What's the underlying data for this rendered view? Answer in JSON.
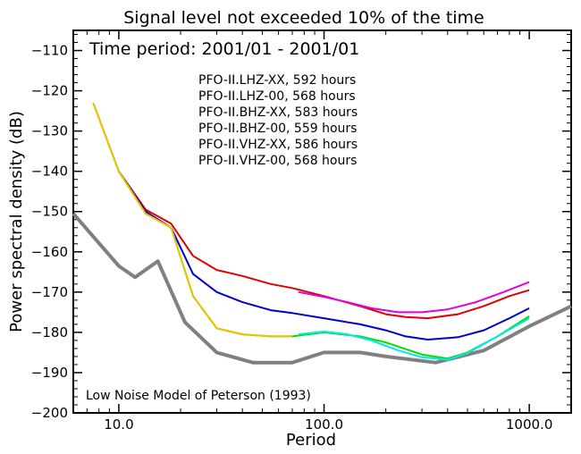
{
  "chart_data": {
    "type": "line",
    "title": "Signal level not exceeded 10% of the time",
    "subtitle": "Time period: 2001/01 - 2001/01",
    "xlabel": "Period",
    "ylabel": "Power spectral density (dB)",
    "x_scale": "log",
    "xlim": [
      6.0,
      1600.0
    ],
    "ylim": [
      -200,
      -105
    ],
    "x_ticks": [
      {
        "value": 10,
        "label": "10.0"
      },
      {
        "value": 100,
        "label": "100.0"
      },
      {
        "value": 1000,
        "label": "1000.0"
      }
    ],
    "y_ticks": [
      {
        "value": -110,
        "label": "−110"
      },
      {
        "value": -120,
        "label": "−120"
      },
      {
        "value": -130,
        "label": "−130"
      },
      {
        "value": -140,
        "label": "−140"
      },
      {
        "value": -150,
        "label": "−150"
      },
      {
        "value": -160,
        "label": "−160"
      },
      {
        "value": -170,
        "label": "−170"
      },
      {
        "value": -180,
        "label": "−180"
      },
      {
        "value": -190,
        "label": "−190"
      },
      {
        "value": -200,
        "label": "−200"
      }
    ],
    "legend_position": "top-center",
    "series": [
      {
        "name": "PFO-II.LHZ-XX, 592 hours",
        "color": "#e00000",
        "x": [
          10,
          13.5,
          18,
          23,
          30,
          40,
          55,
          70,
          100,
          150,
          200,
          250,
          320,
          450,
          600,
          800,
          1000
        ],
        "y": [
          -140,
          -149.5,
          -153,
          -161,
          -164.5,
          -166,
          -168,
          -169,
          -171,
          -173.5,
          -175.5,
          -176.2,
          -176.5,
          -175.5,
          -173.5,
          -171,
          -169.5
        ]
      },
      {
        "name": "PFO-II.LHZ-00, 568 hours",
        "color": "#00e000",
        "x": [
          7.5,
          10,
          13.5,
          18,
          23,
          30,
          40,
          55,
          70,
          100,
          150,
          200,
          300,
          400,
          500,
          700,
          1000
        ],
        "y": [
          -123,
          -140,
          -150.5,
          -154,
          -171,
          -179,
          -180.5,
          -181,
          -181,
          -180,
          -181,
          -182.5,
          -185.5,
          -186.5,
          -185,
          -181,
          -176
        ]
      },
      {
        "name": "PFO-II.BHZ-XX, 583 hours",
        "color": "#0000d0",
        "x": [
          10,
          13.5,
          18,
          23,
          30,
          40,
          55,
          70,
          100,
          150,
          200,
          250,
          320,
          450,
          600,
          800,
          1000
        ],
        "y": [
          -140,
          -150,
          -154,
          -165.5,
          -170,
          -172.5,
          -174.5,
          -175.2,
          -176.5,
          -178,
          -179.5,
          -181,
          -181.8,
          -181.2,
          -179.5,
          -176.5,
          -174
        ]
      },
      {
        "name": "PFO-II.BHZ-00, 559 hours",
        "color": "#f0c000",
        "x": [
          7.5,
          10,
          13.5,
          18,
          23,
          30,
          40,
          55,
          70
        ],
        "y": [
          -123,
          -140,
          -150.5,
          -154,
          -171,
          -179,
          -180.5,
          -181,
          -181
        ]
      },
      {
        "name": "PFO-II.VHZ-XX, 586 hours",
        "color": "#e000e0",
        "x": [
          75,
          100,
          130,
          170,
          230,
          300,
          400,
          550,
          750,
          1000
        ],
        "y": [
          -170,
          -171.2,
          -172.5,
          -174,
          -175,
          -175,
          -174.3,
          -172.5,
          -170,
          -167.5
        ]
      },
      {
        "name": "PFO-II.VHZ-00, 568 hours",
        "color": "#00e8e8",
        "x": [
          75,
          100,
          130,
          170,
          230,
          300,
          400,
          500,
          700,
          1000
        ],
        "y": [
          -180.5,
          -179.8,
          -180.5,
          -182,
          -184.5,
          -186.2,
          -186.8,
          -185.2,
          -181,
          -176.5
        ]
      }
    ],
    "reference_curve": {
      "name": "Low Noise Model of Peterson (1993)",
      "color": "#808080",
      "x": [
        6.0,
        10,
        12,
        15.5,
        21,
        30,
        45,
        70,
        100,
        150,
        200,
        350,
        600,
        1000,
        1600
      ],
      "y": [
        -150.5,
        -163.5,
        -166.3,
        -162.3,
        -177.5,
        -185,
        -187.5,
        -187.5,
        -185,
        -185,
        -186,
        -187.5,
        -184.5,
        -178.5,
        -173.5
      ]
    }
  }
}
